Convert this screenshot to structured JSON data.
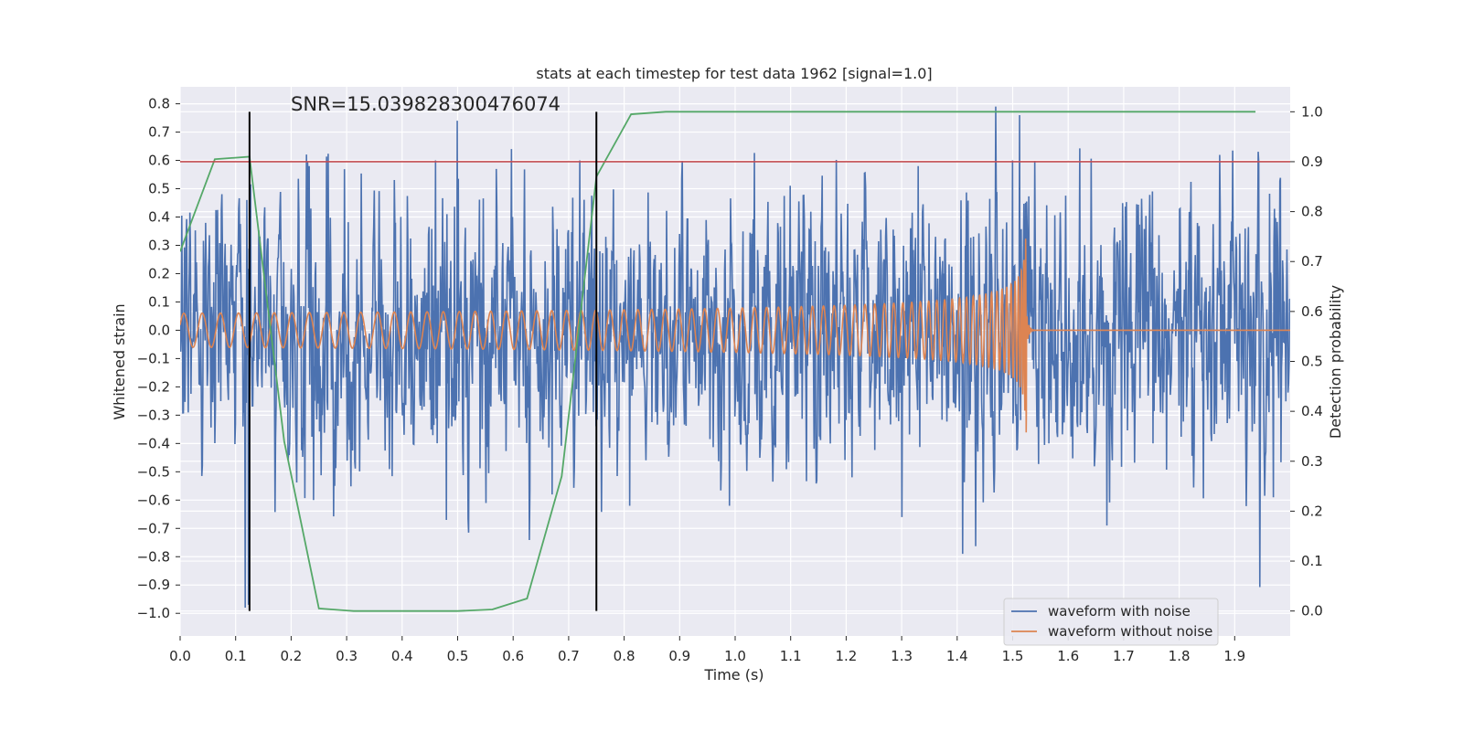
{
  "colors": {
    "background": "#eaeaf2",
    "grid": "#ffffff",
    "noise": "#4c72b0",
    "clean": "#dd8452",
    "prob": "#55a868",
    "threshold": "#c44e52",
    "marker": "#000000"
  },
  "chart_data": {
    "type": "line",
    "title": "stats at each timestep for test data 1962 [signal=1.0]",
    "annotation": "SNR=15.039828300476074",
    "xlabel": "Time (s)",
    "ylabel": "Whitened strain",
    "y2label": "Detection probability",
    "xlim": [
      0.0,
      2.0
    ],
    "ylim": [
      -1.08,
      0.86
    ],
    "y2lim": [
      -0.05,
      1.05
    ],
    "x_ticks": [
      0.0,
      0.1,
      0.2,
      0.3,
      0.4,
      0.5,
      0.6,
      0.7,
      0.8,
      0.9,
      1.0,
      1.1,
      1.2,
      1.3,
      1.4,
      1.5,
      1.6,
      1.7,
      1.8,
      1.9
    ],
    "x_tick_labels": [
      "0.0",
      "0.1",
      "0.2",
      "0.3",
      "0.4",
      "0.5",
      "0.6",
      "0.7",
      "0.8",
      "0.9",
      "1.0",
      "1.1",
      "1.2",
      "1.3",
      "1.4",
      "1.5",
      "1.6",
      "1.7",
      "1.8",
      "1.9"
    ],
    "y_ticks": [
      0.8,
      0.7,
      0.6,
      0.5,
      0.4,
      0.3,
      0.2,
      0.1,
      0.0,
      -0.1,
      -0.2,
      -0.3,
      -0.4,
      -0.5,
      -0.6,
      -0.7,
      -0.8,
      -0.9,
      -1.0
    ],
    "y_tick_labels": [
      "0.8",
      "0.7",
      "0.6",
      "0.5",
      "0.4",
      "0.3",
      "0.2",
      "0.1",
      "0.0",
      "−0.1",
      "−0.2",
      "−0.3",
      "−0.4",
      "−0.5",
      "−0.6",
      "−0.7",
      "−0.8",
      "−0.9",
      "−1.0"
    ],
    "y2_ticks": [
      1.0,
      0.9,
      0.8,
      0.7,
      0.6,
      0.5,
      0.4,
      0.3,
      0.2,
      0.1,
      0.0
    ],
    "y2_tick_labels": [
      "1.0",
      "0.9",
      "0.8",
      "0.7",
      "0.6",
      "0.5",
      "0.4",
      "0.3",
      "0.2",
      "0.1",
      "0.0"
    ],
    "threshold": {
      "axis": "y2",
      "value": 0.9
    },
    "markers": [
      {
        "x": 0.125
      },
      {
        "x": 0.75
      }
    ],
    "legend": {
      "position": "bottom-right",
      "entries": [
        "waveform with noise",
        "waveform without noise"
      ]
    },
    "series": [
      {
        "name": "waveform with noise",
        "axis": "y",
        "kind": "noise",
        "x_range": [
          0.0,
          2.0
        ],
        "n_points": 2048,
        "std": 0.22,
        "seed": 1962,
        "spikes": [
          {
            "x": 0.117,
            "y": -0.98
          },
          {
            "x": 0.12,
            "y": 0.46
          },
          {
            "x": 0.123,
            "y": -0.97
          },
          {
            "x": 0.233,
            "y": 0.58
          },
          {
            "x": 0.24,
            "y": -0.6
          },
          {
            "x": 0.46,
            "y": 0.6
          },
          {
            "x": 0.48,
            "y": -0.67
          },
          {
            "x": 0.499,
            "y": 0.74
          },
          {
            "x": 0.57,
            "y": 0.57
          },
          {
            "x": 0.67,
            "y": -0.58
          },
          {
            "x": 0.72,
            "y": 0.6
          },
          {
            "x": 0.81,
            "y": -0.62
          },
          {
            "x": 0.99,
            "y": -0.62
          },
          {
            "x": 1.3,
            "y": -0.66
          },
          {
            "x": 1.33,
            "y": 0.58
          },
          {
            "x": 1.41,
            "y": -0.79
          },
          {
            "x": 1.5,
            "y": 0.6
          },
          {
            "x": 1.512,
            "y": 0.76
          },
          {
            "x": 1.67,
            "y": -0.69
          },
          {
            "x": 1.97,
            "y": -0.59
          }
        ]
      },
      {
        "name": "waveform without noise",
        "axis": "y",
        "kind": "chirp",
        "x_range": [
          0.0,
          2.0
        ],
        "merger_time": 1.525,
        "amplitude_start": 0.06,
        "amplitude_peak": 0.42,
        "frequency_start_hz": 30,
        "frequency_end_hz": 300
      },
      {
        "name": "detection probability",
        "axis": "y2",
        "kind": "line",
        "x": [
          0.0,
          0.0625,
          0.125,
          0.1875,
          0.25,
          0.3125,
          0.375,
          0.4375,
          0.5,
          0.5625,
          0.625,
          0.6875,
          0.75,
          0.8125,
          0.875,
          0.9375,
          1.0,
          1.0625,
          1.125,
          1.1875,
          1.25,
          1.3125,
          1.375,
          1.4375,
          1.5,
          1.5625,
          1.625,
          1.6875,
          1.75,
          1.8125,
          1.875,
          1.9375
        ],
        "values": [
          0.72,
          0.905,
          0.91,
          0.34,
          0.005,
          0.0,
          0.0,
          0.0,
          0.0,
          0.003,
          0.025,
          0.27,
          0.87,
          0.995,
          1.0,
          1.0,
          1.0,
          1.0,
          1.0,
          1.0,
          1.0,
          1.0,
          1.0,
          1.0,
          1.0,
          1.0,
          1.0,
          1.0,
          1.0,
          1.0,
          1.0,
          1.0
        ]
      }
    ]
  }
}
